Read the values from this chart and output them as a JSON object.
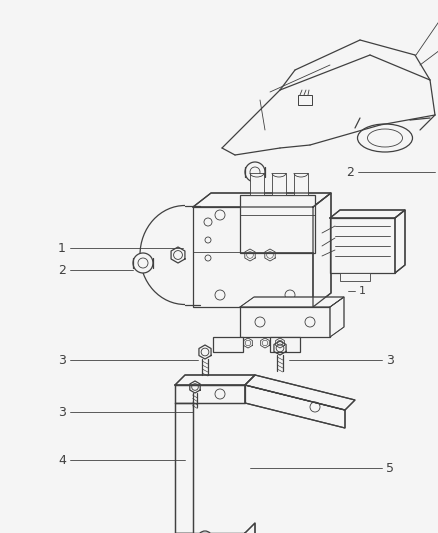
{
  "background_color": "#f5f5f5",
  "line_color": "#404040",
  "fig_width": 4.38,
  "fig_height": 5.33,
  "dpi": 100,
  "font_size": 9,
  "label_color": "#404040"
}
